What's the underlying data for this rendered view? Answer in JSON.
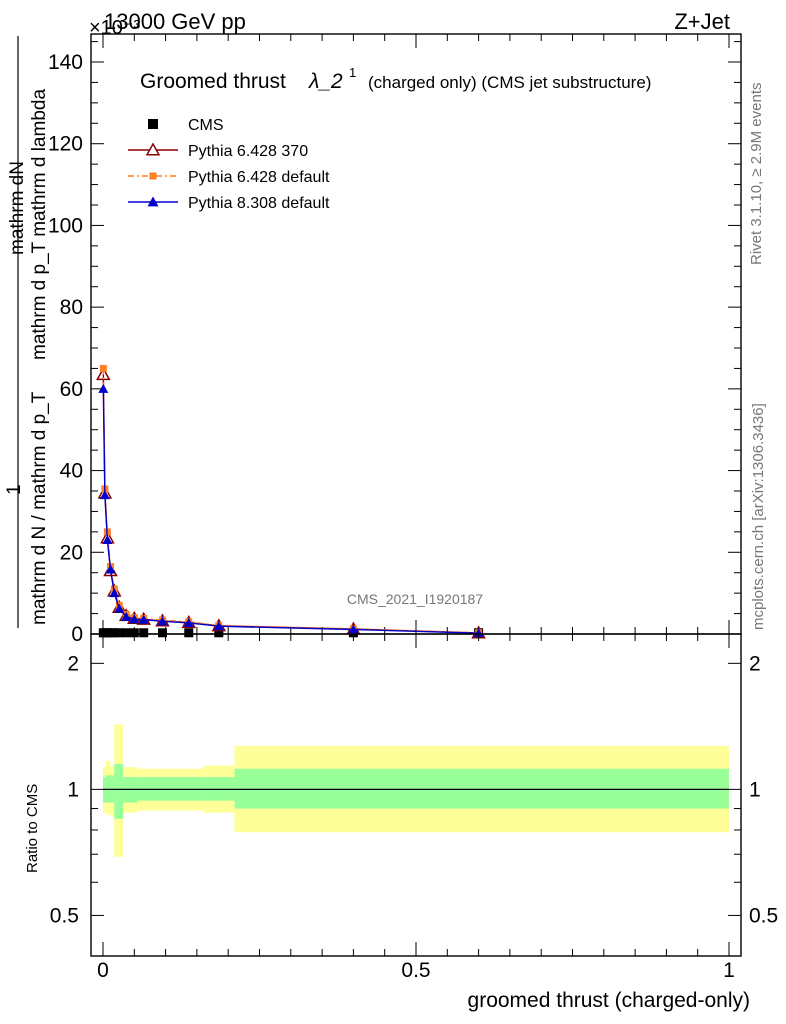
{
  "header": {
    "left": "13000 GeV pp",
    "right": "Z+Jet",
    "exponent": "×10⁻³"
  },
  "side_labels": {
    "rivet": "Rivet 3.1.10, ≥ 2.9M events",
    "mcplots": "mcplots.cern.ch [arXiv:1306.3436]"
  },
  "chart_data": [
    {
      "type": "line",
      "title": "Groomed thrust λ_2¹",
      "title_main": "Groomed thrust",
      "title_lambda": "λ_2",
      "title_sup": "1",
      "title_suffix": "(charged only) (CMS jet substructure)",
      "watermark": "CMS_2021_I1920187",
      "ylabel_numerator": "mathrm dN",
      "ylabel_mid": "mathrm d p_T mathrm d lambda",
      "ylabel_one": "1",
      "ylabel_den": "mathrm d N / mathrm d p_T",
      "xlabel": "",
      "xlim": [
        0,
        1
      ],
      "ylim": [
        0,
        148
      ],
      "y_ticks": [
        0,
        20,
        40,
        60,
        80,
        100,
        120,
        140
      ],
      "y_tick_labels": [
        "0",
        "20",
        "40",
        "60",
        "80",
        "100",
        "120",
        "140"
      ],
      "legend_position": "top-left",
      "legend": [
        {
          "name": "CMS",
          "color": "#000000",
          "marker": "square"
        },
        {
          "name": "Pythia 6.428 370",
          "color": "#8b0000",
          "marker": "open-triangle"
        },
        {
          "name": "Pythia 6.428 default",
          "color": "#ff7f27",
          "marker": "small-square"
        },
        {
          "name": "Pythia 8.308 default",
          "color": "#0000cc",
          "marker": "triangle"
        }
      ],
      "x": [
        0.0005,
        0.003,
        0.007,
        0.012,
        0.018,
        0.026,
        0.037,
        0.05,
        0.065,
        0.095,
        0.137,
        0.185,
        0.4,
        0.6
      ],
      "series": [
        {
          "name": "CMS",
          "values": [
            0.3,
            0.3,
            0.3,
            0.3,
            0.3,
            0.3,
            0.3,
            0.3,
            0.3,
            0.3,
            0.3,
            0.3,
            0.3,
            0.3
          ]
        },
        {
          "name": "Pythia 6.428 370",
          "values": [
            63.5,
            34.5,
            23.5,
            15.5,
            10.5,
            6.5,
            4.5,
            3.8,
            3.6,
            3.2,
            2.8,
            2.0,
            1.2,
            0.25
          ]
        },
        {
          "name": "Pythia 6.428 default",
          "values": [
            65.0,
            35.5,
            25.0,
            16.5,
            11.0,
            7.0,
            4.8,
            4.0,
            3.8,
            3.4,
            3.0,
            2.1,
            1.3,
            0.3
          ]
        },
        {
          "name": "Pythia 8.308 default",
          "values": [
            60.0,
            34.0,
            23.0,
            15.8,
            10.0,
            6.2,
            4.2,
            3.6,
            3.5,
            3.1,
            2.7,
            1.9,
            1.1,
            0.2
          ]
        }
      ]
    },
    {
      "type": "area",
      "xlabel": "groomed thrust (charged-only)",
      "ylabel": "Ratio to CMS",
      "xlim": [
        0,
        1
      ],
      "ylim": [
        0.4,
        2.35
      ],
      "y_log": true,
      "x_ticks": [
        0,
        0.5,
        1
      ],
      "x_tick_labels": [
        "0",
        "0.5",
        "1"
      ],
      "y_ticks": [
        0.5,
        1,
        2
      ],
      "y_tick_labels": [
        "0.5",
        "1",
        "2"
      ],
      "band_colors": {
        "inner": "#99ff99",
        "outer": "#ffff99"
      },
      "bins": [
        {
          "x0": 0.0,
          "x1": 0.004,
          "inner": [
            0.93,
            1.07
          ],
          "outer": [
            0.88,
            1.13
          ]
        },
        {
          "x0": 0.004,
          "x1": 0.012,
          "inner": [
            0.93,
            1.08
          ],
          "outer": [
            0.87,
            1.17
          ]
        },
        {
          "x0": 0.012,
          "x1": 0.018,
          "inner": [
            0.93,
            1.08
          ],
          "outer": [
            0.86,
            1.14
          ]
        },
        {
          "x0": 0.018,
          "x1": 0.032,
          "inner": [
            0.85,
            1.15
          ],
          "outer": [
            0.69,
            1.43
          ]
        },
        {
          "x0": 0.032,
          "x1": 0.055,
          "inner": [
            0.93,
            1.07
          ],
          "outer": [
            0.88,
            1.13
          ]
        },
        {
          "x0": 0.055,
          "x1": 0.16,
          "inner": [
            0.94,
            1.07
          ],
          "outer": [
            0.89,
            1.12
          ]
        },
        {
          "x0": 0.16,
          "x1": 0.21,
          "inner": [
            0.94,
            1.07
          ],
          "outer": [
            0.88,
            1.14
          ]
        },
        {
          "x0": 0.21,
          "x1": 1.0,
          "inner": [
            0.9,
            1.12
          ],
          "outer": [
            0.79,
            1.27
          ]
        }
      ]
    }
  ]
}
